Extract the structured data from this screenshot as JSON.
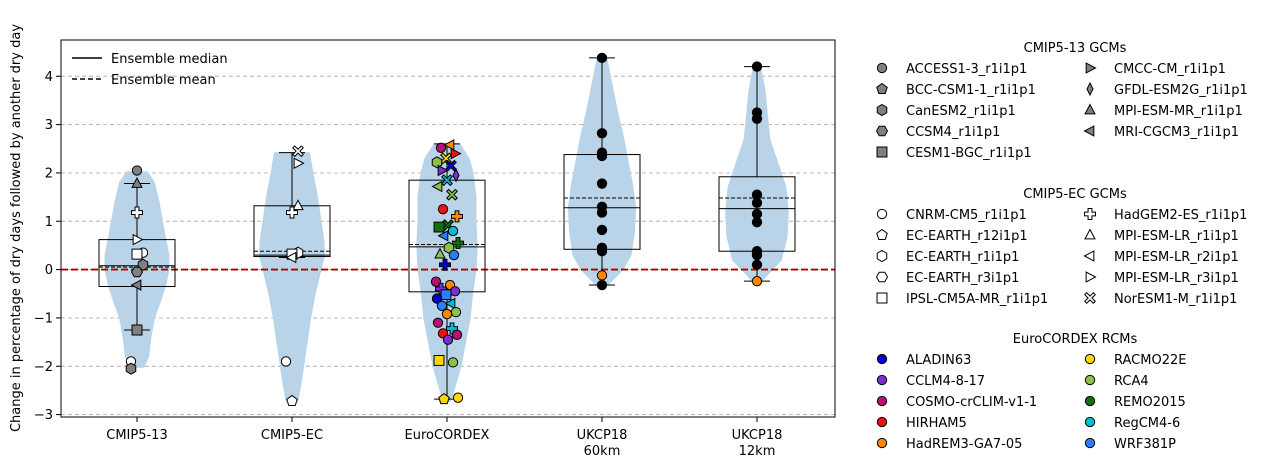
{
  "chart_data": {
    "type": "violin-box-scatter",
    "ylabel": "Change in percentage of dry days followed by another dry day",
    "ylim": [
      -3.05,
      4.75
    ],
    "yticks": [
      -3,
      -2,
      -1,
      0,
      1,
      2,
      3,
      4
    ],
    "grid": "y-dashed",
    "zero_line_color": "#aa0000",
    "violin_color": "#b9d3e8",
    "groups": [
      {
        "label": "CMIP5-13",
        "stats": {
          "min": -1.25,
          "q1": -0.35,
          "median": 0.08,
          "mean": 0.05,
          "q3": 0.62,
          "max": 1.78
        },
        "violin": [
          [
            -2.02,
            0.12
          ],
          [
            -1.8,
            0.2
          ],
          [
            -1.4,
            0.24
          ],
          [
            -1.0,
            0.3
          ],
          [
            -0.6,
            0.42
          ],
          [
            -0.3,
            0.5
          ],
          [
            0.0,
            0.55
          ],
          [
            0.3,
            0.55
          ],
          [
            0.6,
            0.5
          ],
          [
            1.0,
            0.44
          ],
          [
            1.4,
            0.38
          ],
          [
            1.8,
            0.3
          ],
          [
            2.02,
            0.18
          ]
        ]
      },
      {
        "label": "CMIP5-EC",
        "stats": {
          "min": 0.25,
          "q1": 0.27,
          "median": 0.3,
          "mean": 0.38,
          "q3": 1.32,
          "max": 2.42
        },
        "violin": [
          [
            -2.72,
            0.1
          ],
          [
            -2.4,
            0.15
          ],
          [
            -2.0,
            0.2
          ],
          [
            -1.5,
            0.26
          ],
          [
            -1.0,
            0.32
          ],
          [
            -0.5,
            0.4
          ],
          [
            0.0,
            0.5
          ],
          [
            0.3,
            0.56
          ],
          [
            0.6,
            0.55
          ],
          [
            1.0,
            0.5
          ],
          [
            1.5,
            0.44
          ],
          [
            2.0,
            0.36
          ],
          [
            2.42,
            0.3
          ]
        ]
      },
      {
        "label": "EuroCORDEX",
        "stats": {
          "min": -2.68,
          "q1": -0.46,
          "median": 0.47,
          "mean": 0.52,
          "q3": 1.85,
          "max": 2.6
        },
        "violin": [
          [
            -2.72,
            0.06
          ],
          [
            -2.5,
            0.12
          ],
          [
            -2.0,
            0.24
          ],
          [
            -1.5,
            0.32
          ],
          [
            -1.0,
            0.4
          ],
          [
            -0.5,
            0.44
          ],
          [
            0.0,
            0.5
          ],
          [
            0.5,
            0.52
          ],
          [
            1.0,
            0.5
          ],
          [
            1.5,
            0.5
          ],
          [
            2.0,
            0.45
          ],
          [
            2.3,
            0.38
          ],
          [
            2.6,
            0.22
          ]
        ]
      },
      {
        "label": "UKCP18",
        "label2": "60km",
        "stats": {
          "min": -0.32,
          "q1": 0.42,
          "median": 1.28,
          "mean": 1.48,
          "q3": 2.38,
          "max": 4.38
        },
        "violin": [
          [
            -0.32,
            0.1
          ],
          [
            0.0,
            0.36
          ],
          [
            0.3,
            0.5
          ],
          [
            0.8,
            0.56
          ],
          [
            1.3,
            0.58
          ],
          [
            1.8,
            0.52
          ],
          [
            2.3,
            0.44
          ],
          [
            2.8,
            0.36
          ],
          [
            3.3,
            0.26
          ],
          [
            3.8,
            0.18
          ],
          [
            4.38,
            0.08
          ]
        ]
      },
      {
        "label": "UKCP18",
        "label2": "12km",
        "stats": {
          "min": -0.24,
          "q1": 0.38,
          "median": 1.26,
          "mean": 1.48,
          "q3": 1.92,
          "max": 4.2
        },
        "violin": [
          [
            -0.24,
            0.08
          ],
          [
            0.2,
            0.42
          ],
          [
            0.7,
            0.52
          ],
          [
            1.2,
            0.54
          ],
          [
            1.7,
            0.5
          ],
          [
            2.2,
            0.36
          ],
          [
            2.7,
            0.22
          ],
          [
            3.2,
            0.18
          ],
          [
            3.7,
            0.14
          ],
          [
            4.2,
            0.06
          ]
        ]
      }
    ],
    "legend_lines": [
      {
        "label": "Ensemble median",
        "style": "solid"
      },
      {
        "label": "Ensemble mean",
        "style": "dashed"
      }
    ],
    "legend_groups": [
      {
        "title": "CMIP5-13 GCMs",
        "col1": [
          {
            "label": "ACCESS1-3_r1i1p1",
            "marker": "circle",
            "color": "#808080"
          },
          {
            "label": "BCC-CSM1-1_r1i1p1",
            "marker": "pentagon",
            "color": "#808080"
          },
          {
            "label": "CanESM2_r1i1p1",
            "marker": "hexagon",
            "color": "#808080"
          },
          {
            "label": "CCSM4_r1i1p1",
            "marker": "hexagon2",
            "color": "#808080"
          },
          {
            "label": "CESM1-BGC_r1i1p1",
            "marker": "square",
            "color": "#808080"
          }
        ],
        "col2": [
          {
            "label": "CMCC-CM_r1i1p1",
            "marker": "tri-right",
            "color": "#808080"
          },
          {
            "label": "GFDL-ESM2G_r1i1p1",
            "marker": "thin-diamond",
            "color": "#808080"
          },
          {
            "label": "MPI-ESM-MR_r1i1p1",
            "marker": "tri-up",
            "color": "#808080"
          },
          {
            "label": "MRI-CGCM3_r1i1p1",
            "marker": "tri-left",
            "color": "#808080"
          }
        ]
      },
      {
        "title": "CMIP5-EC GCMs",
        "col1": [
          {
            "label": "CNRM-CM5_r1i1p1",
            "marker": "circle",
            "color": "#ffffff"
          },
          {
            "label": "EC-EARTH_r12i1p1",
            "marker": "pentagon",
            "color": "#ffffff"
          },
          {
            "label": "EC-EARTH_r1i1p1",
            "marker": "hexagon",
            "color": "#ffffff"
          },
          {
            "label": "EC-EARTH_r3i1p1",
            "marker": "hexagon2",
            "color": "#ffffff"
          },
          {
            "label": "IPSL-CM5A-MR_r1i1p1",
            "marker": "square",
            "color": "#ffffff"
          }
        ],
        "col2": [
          {
            "label": "HadGEM2-ES_r1i1p1",
            "marker": "plus",
            "color": "#ffffff"
          },
          {
            "label": "MPI-ESM-LR_r1i1p1",
            "marker": "tri-up",
            "color": "#ffffff"
          },
          {
            "label": "MPI-ESM-LR_r2i1p1",
            "marker": "tri-left",
            "color": "#ffffff"
          },
          {
            "label": "MPI-ESM-LR_r3i1p1",
            "marker": "tri-right",
            "color": "#ffffff"
          },
          {
            "label": "NorESM1-M_r1i1p1",
            "marker": "x",
            "color": "#ffffff"
          }
        ]
      },
      {
        "title": "EuroCORDEX RCMs",
        "col1": [
          {
            "label": "ALADIN63",
            "marker": "circle",
            "color": "#0000cc"
          },
          {
            "label": "CCLM4-8-17",
            "marker": "circle",
            "color": "#7b2fd1"
          },
          {
            "label": "COSMO-crCLIM-v1-1",
            "marker": "circle",
            "color": "#b5117a"
          },
          {
            "label": "HIRHAM5",
            "marker": "circle",
            "color": "#ee1111"
          },
          {
            "label": "HadREM3-GA7-05",
            "marker": "circle",
            "color": "#ff8800"
          }
        ],
        "col2": [
          {
            "label": "RACMO22E",
            "marker": "circle",
            "color": "#ffd700"
          },
          {
            "label": "RCA4",
            "marker": "circle",
            "color": "#8bc34a"
          },
          {
            "label": "REMO2015",
            "marker": "circle",
            "color": "#107010"
          },
          {
            "label": "RegCM4-6",
            "marker": "circle",
            "color": "#00bcd4"
          },
          {
            "label": "WRF381P",
            "marker": "circle",
            "color": "#2a7fff"
          }
        ]
      }
    ],
    "points": [
      {
        "g": 0,
        "y": 2.05,
        "m": "circle",
        "c": "#808080"
      },
      {
        "g": 0,
        "y": 1.78,
        "m": "tri-up",
        "c": "#808080"
      },
      {
        "g": 0,
        "y": 1.18,
        "m": "plus",
        "c": "#ffffff"
      },
      {
        "g": 0,
        "y": 0.62,
        "m": "tri-right",
        "c": "#ffffff"
      },
      {
        "g": 0,
        "y": 0.35,
        "m": "circle",
        "c": "#ffffff"
      },
      {
        "g": 0,
        "y": 0.32,
        "m": "square",
        "c": "#ffffff"
      },
      {
        "g": 0,
        "y": 0.1,
        "m": "hexagon",
        "c": "#808080"
      },
      {
        "g": 0,
        "y": -0.05,
        "m": "hexagon2",
        "c": "#808080"
      },
      {
        "g": 0,
        "y": -0.32,
        "m": "tri-left",
        "c": "#808080"
      },
      {
        "g": 0,
        "y": -1.25,
        "m": "square",
        "c": "#808080"
      },
      {
        "g": 0,
        "y": -1.9,
        "m": "circle",
        "c": "#ffffff"
      },
      {
        "g": 0,
        "y": -2.05,
        "m": "hexagon",
        "c": "#808080"
      },
      {
        "g": 1,
        "y": 2.45,
        "m": "x",
        "c": "#ffffff"
      },
      {
        "g": 1,
        "y": 2.2,
        "m": "tri-right",
        "c": "#ffffff"
      },
      {
        "g": 1,
        "y": 1.32,
        "m": "tri-up",
        "c": "#ffffff"
      },
      {
        "g": 1,
        "y": 1.18,
        "m": "plus",
        "c": "#ffffff"
      },
      {
        "g": 1,
        "y": 0.35,
        "m": "hexagon",
        "c": "#ffffff"
      },
      {
        "g": 1,
        "y": 0.32,
        "m": "square",
        "c": "#ffffff"
      },
      {
        "g": 1,
        "y": 0.25,
        "m": "tri-left",
        "c": "#ffffff"
      },
      {
        "g": 1,
        "y": -1.9,
        "m": "circle",
        "c": "#ffffff"
      },
      {
        "g": 1,
        "y": -2.72,
        "m": "pentagon",
        "c": "#ffffff"
      },
      {
        "g": 2,
        "y": 2.58,
        "m": "tri-left",
        "c": "#ff8800"
      },
      {
        "g": 2,
        "y": 2.52,
        "m": "circle",
        "c": "#b5117a"
      },
      {
        "g": 2,
        "y": 2.4,
        "m": "tri-right",
        "c": "#ee1111"
      },
      {
        "g": 2,
        "y": 2.3,
        "m": "x",
        "c": "#ffd700"
      },
      {
        "g": 2,
        "y": 2.22,
        "m": "hexagon",
        "c": "#8bc34a"
      },
      {
        "g": 2,
        "y": 2.15,
        "m": "x",
        "c": "#0000cc"
      },
      {
        "g": 2,
        "y": 2.05,
        "m": "tri-right",
        "c": "#7b2fd1"
      },
      {
        "g": 2,
        "y": 1.95,
        "m": "thin-diamond",
        "c": "#7b2fd1"
      },
      {
        "g": 2,
        "y": 1.85,
        "m": "x",
        "c": "#00bcd4"
      },
      {
        "g": 2,
        "y": 1.72,
        "m": "tri-left",
        "c": "#8bc34a"
      },
      {
        "g": 2,
        "y": 1.55,
        "m": "x",
        "c": "#8bc34a"
      },
      {
        "g": 2,
        "y": 1.25,
        "m": "circle",
        "c": "#ee1111"
      },
      {
        "g": 2,
        "y": 1.1,
        "m": "plus",
        "c": "#ff8800"
      },
      {
        "g": 2,
        "y": 0.92,
        "m": "x",
        "c": "#107010"
      },
      {
        "g": 2,
        "y": 0.88,
        "m": "square",
        "c": "#107010"
      },
      {
        "g": 2,
        "y": 0.8,
        "m": "circle",
        "c": "#00bcd4"
      },
      {
        "g": 2,
        "y": 0.7,
        "m": "tri-left",
        "c": "#2a7fff"
      },
      {
        "g": 2,
        "y": 0.55,
        "m": "plus",
        "c": "#107010"
      },
      {
        "g": 2,
        "y": 0.45,
        "m": "hexagon",
        "c": "#8bc34a"
      },
      {
        "g": 2,
        "y": 0.32,
        "m": "tri-up",
        "c": "#8bc34a"
      },
      {
        "g": 2,
        "y": 0.3,
        "m": "circle",
        "c": "#2a7fff"
      },
      {
        "g": 2,
        "y": 0.1,
        "m": "plus",
        "c": "#0000cc"
      },
      {
        "g": 2,
        "y": -0.25,
        "m": "circle",
        "c": "#b5117a"
      },
      {
        "g": 2,
        "y": -0.32,
        "m": "circle",
        "c": "#ff8800"
      },
      {
        "g": 2,
        "y": -0.4,
        "m": "plus",
        "c": "#7b2fd1"
      },
      {
        "g": 2,
        "y": -0.45,
        "m": "circle",
        "c": "#7b2fd1"
      },
      {
        "g": 2,
        "y": -0.52,
        "m": "square",
        "c": "#2a7fff"
      },
      {
        "g": 2,
        "y": -0.6,
        "m": "circle",
        "c": "#0000cc"
      },
      {
        "g": 2,
        "y": -0.7,
        "m": "tri-left",
        "c": "#00bcd4"
      },
      {
        "g": 2,
        "y": -0.75,
        "m": "circle",
        "c": "#2a7fff"
      },
      {
        "g": 2,
        "y": -0.88,
        "m": "circle",
        "c": "#8bc34a"
      },
      {
        "g": 2,
        "y": -0.92,
        "m": "circle",
        "c": "#ff8800"
      },
      {
        "g": 2,
        "y": -1.1,
        "m": "circle",
        "c": "#b5117a"
      },
      {
        "g": 2,
        "y": -1.22,
        "m": "plus",
        "c": "#00bcd4"
      },
      {
        "g": 2,
        "y": -1.32,
        "m": "circle",
        "c": "#ee1111"
      },
      {
        "g": 2,
        "y": -1.35,
        "m": "circle",
        "c": "#b5117a"
      },
      {
        "g": 2,
        "y": -1.45,
        "m": "circle",
        "c": "#7b2fd1"
      },
      {
        "g": 2,
        "y": -1.88,
        "m": "square",
        "c": "#ffd700"
      },
      {
        "g": 2,
        "y": -1.92,
        "m": "circle",
        "c": "#8bc34a"
      },
      {
        "g": 2,
        "y": -2.68,
        "m": "pentagon",
        "c": "#ffd700"
      },
      {
        "g": 2,
        "y": -2.65,
        "m": "circle",
        "c": "#ffd700"
      },
      {
        "g": 3,
        "y": 4.38,
        "m": "circle",
        "c": "#000000"
      },
      {
        "g": 3,
        "y": 2.82,
        "m": "circle",
        "c": "#000000"
      },
      {
        "g": 3,
        "y": 2.42,
        "m": "circle",
        "c": "#000000"
      },
      {
        "g": 3,
        "y": 2.35,
        "m": "circle",
        "c": "#000000"
      },
      {
        "g": 3,
        "y": 1.78,
        "m": "circle",
        "c": "#000000"
      },
      {
        "g": 3,
        "y": 1.3,
        "m": "circle",
        "c": "#000000"
      },
      {
        "g": 3,
        "y": 1.18,
        "m": "circle",
        "c": "#000000"
      },
      {
        "g": 3,
        "y": 0.82,
        "m": "circle",
        "c": "#000000"
      },
      {
        "g": 3,
        "y": 0.45,
        "m": "circle",
        "c": "#000000"
      },
      {
        "g": 3,
        "y": 0.38,
        "m": "circle",
        "c": "#000000"
      },
      {
        "g": 3,
        "y": -0.12,
        "m": "circle",
        "c": "#ff8800"
      },
      {
        "g": 3,
        "y": -0.32,
        "m": "circle",
        "c": "#000000"
      },
      {
        "g": 4,
        "y": 4.2,
        "m": "circle",
        "c": "#000000"
      },
      {
        "g": 4,
        "y": 3.25,
        "m": "circle",
        "c": "#000000"
      },
      {
        "g": 4,
        "y": 3.12,
        "m": "circle",
        "c": "#000000"
      },
      {
        "g": 4,
        "y": 1.55,
        "m": "circle",
        "c": "#000000"
      },
      {
        "g": 4,
        "y": 1.38,
        "m": "circle",
        "c": "#000000"
      },
      {
        "g": 4,
        "y": 1.15,
        "m": "circle",
        "c": "#000000"
      },
      {
        "g": 4,
        "y": 0.98,
        "m": "circle",
        "c": "#000000"
      },
      {
        "g": 4,
        "y": 0.38,
        "m": "circle",
        "c": "#000000"
      },
      {
        "g": 4,
        "y": 0.3,
        "m": "circle",
        "c": "#000000"
      },
      {
        "g": 4,
        "y": 0.1,
        "m": "circle",
        "c": "#000000"
      },
      {
        "g": 4,
        "y": -0.24,
        "m": "circle",
        "c": "#ff8800"
      }
    ]
  }
}
